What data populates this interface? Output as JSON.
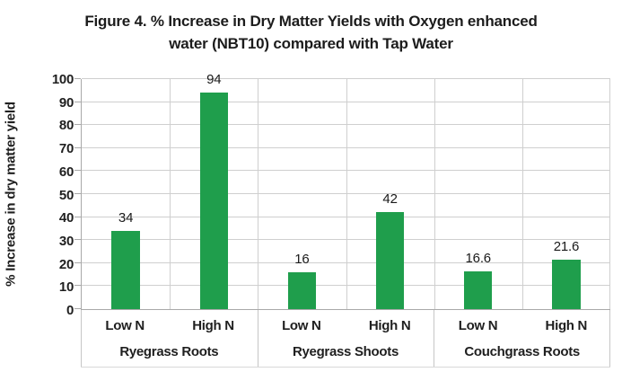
{
  "title": {
    "line1": "Figure 4. % Increase in Dry Matter Yields with Oxygen enhanced",
    "line2": "water (NBT10) compared with Tap Water"
  },
  "colors": {
    "bar_green": "#1f9e4c",
    "gridline": "#cfcfcf",
    "axis": "#a9a9a9",
    "text": "#1c1c1c"
  },
  "chart_data": {
    "type": "bar",
    "title": "Figure 4. % Increase in Dry Matter Yields with Oxygen enhanced water (NBT10) compared with Tap Water",
    "xlabel": "",
    "ylabel": "% Increase in dry matter yield",
    "ylim": [
      0,
      100
    ],
    "ytick_step": 10,
    "grid": true,
    "legend": "none",
    "bar_color": "#1f9e4c",
    "groups": [
      {
        "label": "Ryegrass Roots",
        "categories": [
          "Low N",
          "High N"
        ],
        "values": [
          34,
          94
        ]
      },
      {
        "label": "Ryegrass Shoots",
        "categories": [
          "Low N",
          "High N"
        ],
        "values": [
          16,
          42
        ]
      },
      {
        "label": "Couchgrass Roots",
        "categories": [
          "Low N",
          "High N"
        ],
        "values": [
          16.6,
          21.6
        ]
      }
    ]
  }
}
